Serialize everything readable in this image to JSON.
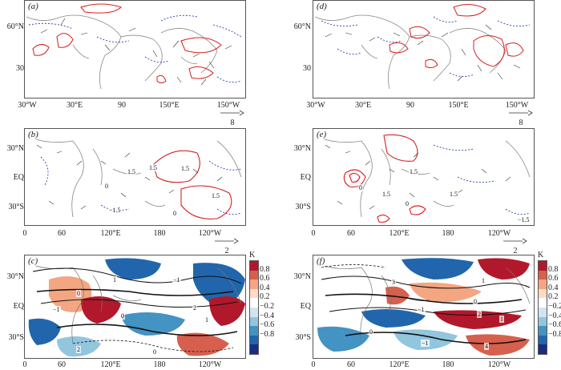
{
  "panels": {
    "a": {
      "label": "(a)",
      "ylabels": [
        "60°N",
        "30"
      ],
      "xlabels": [
        "30°W",
        "30°E",
        "90",
        "150°E",
        "150°W"
      ],
      "scale": "8"
    },
    "d": {
      "label": "(d)",
      "ylabels": [
        "60°N",
        "30"
      ],
      "xlabels": [
        "30°W",
        "30°E",
        "90",
        "150°E",
        "150°W"
      ],
      "scale": "8"
    },
    "b": {
      "label": "(b)",
      "ylabels": [
        "30°N",
        "EQ",
        "30°S"
      ],
      "xlabels": [
        "0",
        "60",
        "120°E",
        "180",
        "120°W"
      ],
      "scale": "2"
    },
    "e": {
      "label": "(e)",
      "ylabels": [
        "30°N",
        "EQ",
        "30°S"
      ],
      "xlabels": [
        "0",
        "60",
        "120°E",
        "180",
        "120°W"
      ],
      "scale": "2"
    },
    "c": {
      "label": "(c)",
      "ylabels": [
        "30°N",
        "EQ",
        "30°S"
      ],
      "xlabels": [
        "0",
        "60",
        "120°E",
        "180",
        "120°W"
      ]
    },
    "f": {
      "label": "(f)",
      "ylabels": [
        "30°N",
        "EQ",
        "30°S"
      ],
      "xlabels": [
        "0",
        "60",
        "120°E",
        "180",
        "120°W"
      ]
    }
  },
  "colorbar": {
    "unit": "K",
    "labels": [
      "0.8",
      "0.6",
      "0.4",
      "0.2",
      "−0.2",
      "−0.4",
      "−0.6",
      "−0.8"
    ],
    "colors": [
      "#b2182b",
      "#d6604d",
      "#f4a582",
      "#fddbc7",
      "#ffffff",
      "#d1e5f0",
      "#92c5de",
      "#4393c3",
      "#2166ac",
      "#1a2d80"
    ]
  },
  "contour_labels": {
    "b": [
      "1.5",
      "1.5",
      "0",
      "1.5",
      "−1.5",
      "1.5",
      "0"
    ],
    "e": [
      "1.5",
      "0",
      "1.5",
      "1.5",
      "−1.5",
      "0"
    ],
    "c": [
      "1",
      "0",
      "−1",
      "2",
      "0",
      "−1",
      "1",
      "0",
      "2"
    ],
    "f": [
      "1",
      "0",
      "−1",
      "2",
      "3",
      "1",
      "4",
      "−1",
      "0"
    ]
  }
}
